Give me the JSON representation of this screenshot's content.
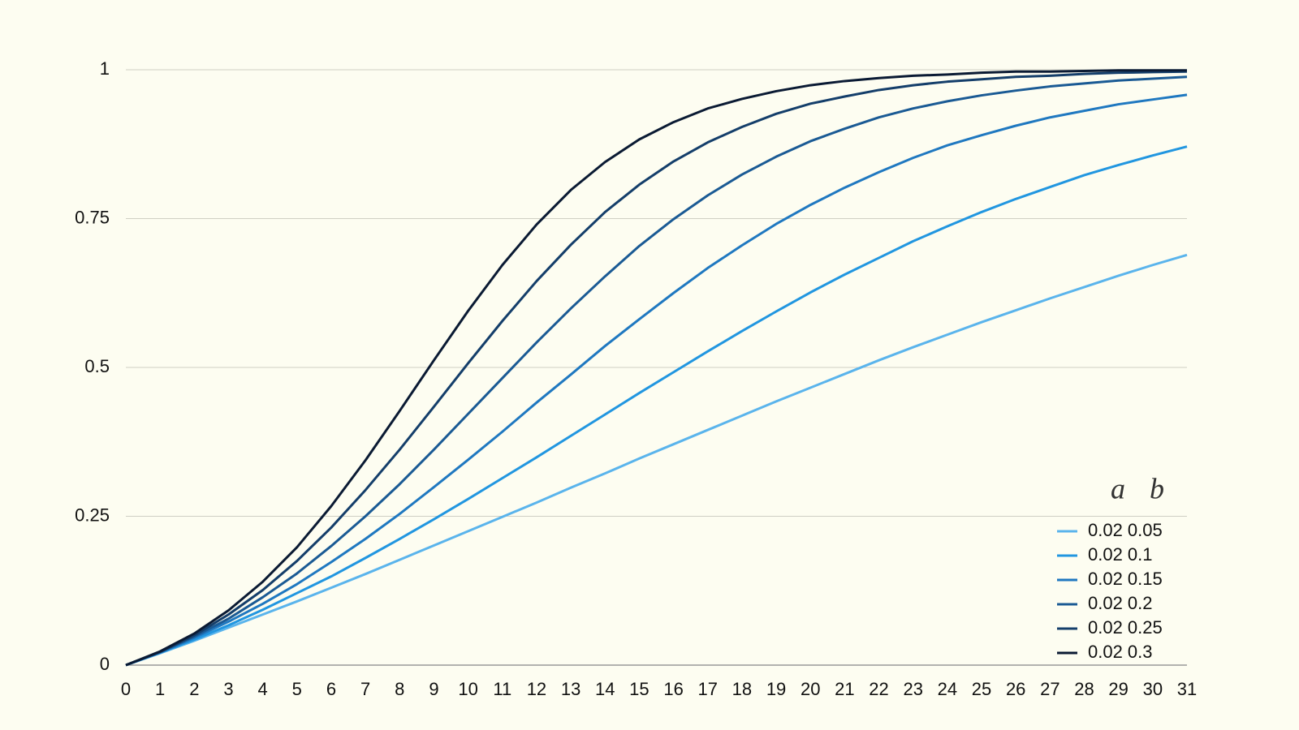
{
  "chart_data": {
    "type": "line",
    "x": [
      0,
      1,
      2,
      3,
      4,
      5,
      6,
      7,
      8,
      9,
      10,
      11,
      12,
      13,
      14,
      15,
      16,
      17,
      18,
      19,
      20,
      21,
      22,
      23,
      24,
      25,
      26,
      27,
      28,
      29,
      30,
      31
    ],
    "legend_header": [
      "a",
      "b"
    ],
    "series": [
      {
        "name": "0.02 0.05",
        "color": "#5ab4ec",
        "values": [
          0,
          0.02,
          0.041,
          0.063,
          0.085,
          0.107,
          0.13,
          0.153,
          0.177,
          0.201,
          0.225,
          0.249,
          0.273,
          0.298,
          0.322,
          0.347,
          0.371,
          0.395,
          0.419,
          0.443,
          0.466,
          0.489,
          0.512,
          0.534,
          0.555,
          0.576,
          0.596,
          0.616,
          0.635,
          0.654,
          0.672,
          0.689
        ]
      },
      {
        "name": "0.02 0.1",
        "color": "#2196e0",
        "values": [
          0,
          0.021,
          0.043,
          0.067,
          0.093,
          0.121,
          0.149,
          0.18,
          0.212,
          0.245,
          0.279,
          0.314,
          0.349,
          0.385,
          0.421,
          0.457,
          0.492,
          0.527,
          0.561,
          0.594,
          0.626,
          0.656,
          0.684,
          0.712,
          0.737,
          0.761,
          0.783,
          0.803,
          0.823,
          0.84,
          0.856,
          0.871
        ]
      },
      {
        "name": "0.02 0.15",
        "color": "#1f78c0",
        "values": [
          0,
          0.021,
          0.046,
          0.073,
          0.103,
          0.136,
          0.173,
          0.212,
          0.254,
          0.299,
          0.345,
          0.392,
          0.441,
          0.488,
          0.536,
          0.581,
          0.625,
          0.667,
          0.705,
          0.741,
          0.773,
          0.802,
          0.828,
          0.852,
          0.873,
          0.89,
          0.906,
          0.92,
          0.931,
          0.942,
          0.95,
          0.958
        ]
      },
      {
        "name": "0.02 0.2",
        "color": "#1a5a94",
        "values": [
          0,
          0.022,
          0.048,
          0.078,
          0.114,
          0.154,
          0.2,
          0.25,
          0.304,
          0.362,
          0.422,
          0.482,
          0.542,
          0.599,
          0.653,
          0.704,
          0.749,
          0.789,
          0.824,
          0.854,
          0.88,
          0.901,
          0.92,
          0.935,
          0.947,
          0.957,
          0.965,
          0.972,
          0.977,
          0.982,
          0.985,
          0.988
        ]
      },
      {
        "name": "0.02 0.25",
        "color": "#143e6a",
        "values": [
          0,
          0.022,
          0.05,
          0.085,
          0.126,
          0.175,
          0.231,
          0.294,
          0.362,
          0.434,
          0.507,
          0.578,
          0.645,
          0.706,
          0.761,
          0.807,
          0.846,
          0.878,
          0.904,
          0.926,
          0.943,
          0.955,
          0.966,
          0.974,
          0.98,
          0.984,
          0.988,
          0.99,
          0.993,
          0.995,
          0.996,
          0.997
        ]
      },
      {
        "name": "0.02 0.3",
        "color": "#0a1a33",
        "values": [
          0,
          0.023,
          0.053,
          0.092,
          0.14,
          0.198,
          0.267,
          0.344,
          0.427,
          0.512,
          0.595,
          0.672,
          0.74,
          0.798,
          0.845,
          0.883,
          0.912,
          0.935,
          0.951,
          0.964,
          0.974,
          0.981,
          0.986,
          0.99,
          0.992,
          0.995,
          0.997,
          0.997,
          0.998,
          0.999,
          0.999,
          0.999
        ]
      }
    ],
    "xlim": [
      0,
      31
    ],
    "ylim": [
      0,
      1
    ],
    "xticks": [
      0,
      1,
      2,
      3,
      4,
      5,
      6,
      7,
      8,
      9,
      10,
      11,
      12,
      13,
      14,
      15,
      16,
      17,
      18,
      19,
      20,
      21,
      22,
      23,
      24,
      25,
      26,
      27,
      28,
      29,
      30,
      31
    ],
    "yticks": [
      0,
      0.25,
      0.5,
      0.75,
      1
    ],
    "grid": true
  }
}
